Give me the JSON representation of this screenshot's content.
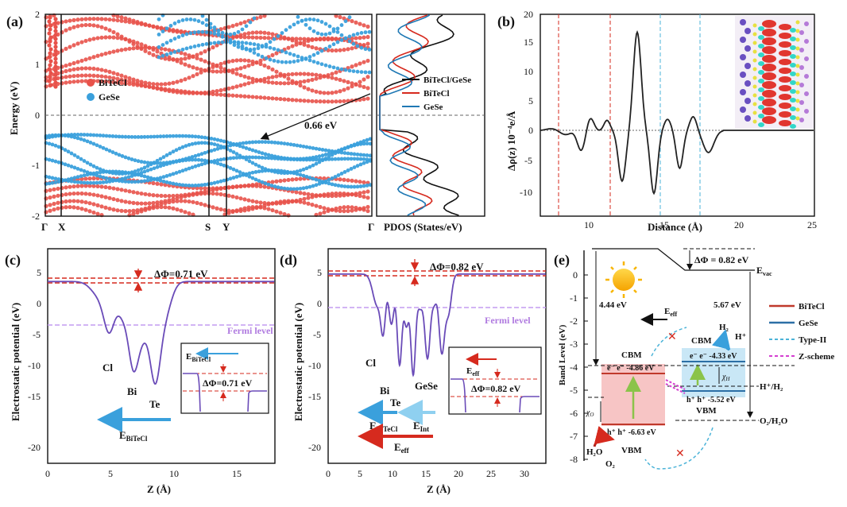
{
  "figure": {
    "panels": {
      "a": "(a)",
      "b": "(b)",
      "c": "(c)",
      "d": "(d)",
      "e": "(e)"
    }
  },
  "panel_a": {
    "ylabel": "Energy (eV)",
    "yticks": [
      "-2",
      "-1",
      "0",
      "1",
      "2"
    ],
    "kpoints": [
      "Γ",
      "X",
      "S",
      "Y",
      "Γ"
    ],
    "legend": [
      {
        "name": "BiTeCl",
        "color": "#e8524a"
      },
      {
        "name": "GeSe",
        "color": "#3aa0dc"
      }
    ],
    "gap_label": "0.66 eV",
    "pdos_xlabel": "PDOS (States/eV)",
    "pdos_legend": [
      {
        "name": "BiTeCl/GeSe",
        "color": "#111111"
      },
      {
        "name": "BiTeCl",
        "color": "#d62a1e"
      },
      {
        "name": "GeSe",
        "color": "#1f78b4"
      }
    ]
  },
  "panel_b": {
    "ylabel": "Δρ(z) 10⁻⁴e/Å",
    "xlabel": "Distance (Å)",
    "yticks": [
      "-10",
      "-5",
      "0",
      "5",
      "10",
      "15",
      "20"
    ],
    "xticks": [
      "10",
      "15",
      "20",
      "25"
    ]
  },
  "panel_c": {
    "ylabel": "Electrostatic potential (eV)",
    "xlabel": "Z (Å)",
    "yticks": [
      "5",
      "0",
      "-5",
      "-10",
      "-15",
      "-20"
    ],
    "xticks": [
      "0",
      "5",
      "10",
      "15"
    ],
    "delta_phi": "ΔΦ=0.71 eV",
    "fermi": "Fermi level",
    "atoms": [
      "Cl",
      "Bi",
      "Te"
    ],
    "field": "E",
    "field_sub": "BiTeCl",
    "inset_field": "E",
    "inset_field_sub": "BiTeCl",
    "inset_delta": "ΔΦ=0.71 eV"
  },
  "panel_d": {
    "ylabel": "Electrostatic potential (eV)",
    "xlabel": "Z (Å)",
    "yticks": [
      "5",
      "0",
      "-5",
      "-10",
      "-15",
      "-20"
    ],
    "xticks": [
      "0",
      "5",
      "10",
      "15",
      "20",
      "25",
      "30"
    ],
    "delta_phi": "ΔΦ=0.82 eV",
    "fermi": "Fermi level",
    "atoms": [
      "Cl",
      "Bi",
      "Te",
      "GeSe"
    ],
    "field1": "E",
    "field1_sub": "BiTeCl",
    "field2": "E",
    "field2_sub": "Int",
    "field3": "E",
    "field3_sub": "eff",
    "inset_field": "E",
    "inset_field_sub": "eff",
    "inset_delta": "ΔΦ=0.82 eV"
  },
  "panel_e": {
    "ylabel": "Band Level (eV)",
    "yticks": [
      "0",
      "-1",
      "-2",
      "-3",
      "-4",
      "-5",
      "-6",
      "-7",
      "-8"
    ],
    "delta_phi": "ΔΦ = 0.82 eV",
    "evac": "E",
    "evac_sub": "vac",
    "val_444": "4.44 eV",
    "val_567": "5.67 eV",
    "eeff": "E",
    "eeff_sub": "eff",
    "cbm_left": "CBM",
    "cbm_right": "CBM",
    "vbm_left": "VBM",
    "vbm_right": "VBM",
    "e_left": "e⁻ e⁻ -4.86 eV",
    "h_left": "h⁺ h⁺ -6.63 eV",
    "e_right": "e⁻ e⁻ -4.33 eV",
    "h_right": "h⁺ h⁺ -5.52 eV",
    "chi_h": "χ",
    "chi_h_sub": "H",
    "chi_o": "χ",
    "chi_o_sub": "O",
    "h2": "H₂",
    "hplus": "H⁺",
    "h2o": "H₂O",
    "o2": "O₂",
    "hh2": "H⁺/H₂",
    "o2h2o": "O₂/H₂O",
    "legend": [
      {
        "name": "BiTeCl",
        "color": "#c0392b"
      },
      {
        "name": "GeSe",
        "color": "#2c6fa6"
      },
      {
        "name": "Type-II",
        "color": "#4bb3d8"
      },
      {
        "name": "Z-scheme",
        "color": "#d53fd1"
      }
    ]
  }
}
